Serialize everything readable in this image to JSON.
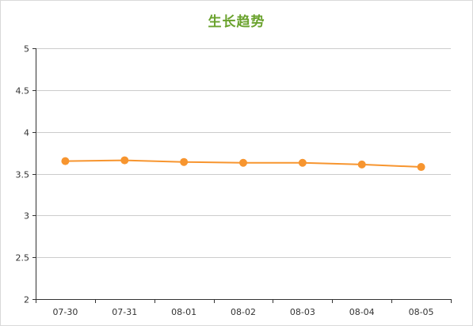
{
  "chart_data": {
    "type": "line",
    "title": "生长趋势",
    "categories": [
      "07-30",
      "07-31",
      "08-01",
      "08-02",
      "08-03",
      "08-04",
      "08-05"
    ],
    "series": [
      {
        "values": [
          3.65,
          3.66,
          3.64,
          3.63,
          3.63,
          3.61,
          3.58
        ],
        "color": "#f7952f"
      }
    ],
    "ylim": [
      2,
      5
    ],
    "yticks": [
      2,
      2.5,
      3,
      3.5,
      4,
      4.5,
      5
    ],
    "ytick_labels": [
      "2",
      "2.5",
      "3",
      "3.5",
      "4",
      "4.5",
      "5"
    ],
    "grid": true,
    "title_color": "#6aa22d",
    "grid_color": "#cccccc",
    "axis_color": "#333333"
  }
}
